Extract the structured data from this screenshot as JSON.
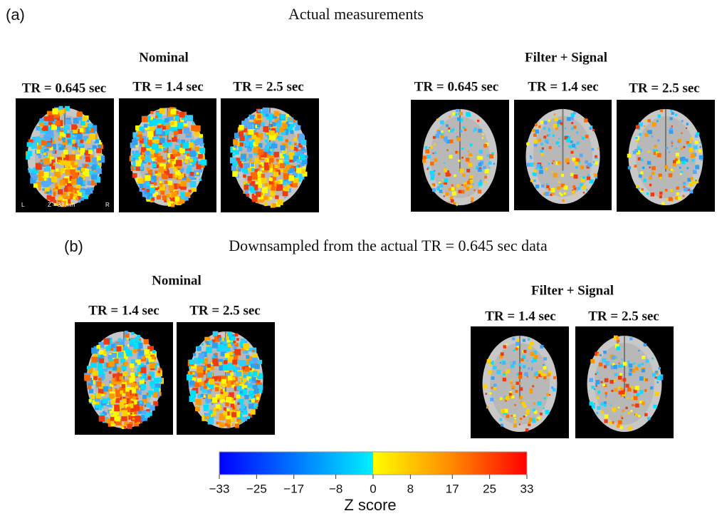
{
  "panel_a": {
    "label": "(a)",
    "title": "Actual measurements",
    "groups": [
      {
        "title": "Nominal",
        "images": [
          "TR = 0.645 sec",
          "TR = 1.4 sec",
          "TR = 2.5 sec"
        ]
      },
      {
        "title": "Filter + Signal",
        "images": [
          "TR = 0.645 sec",
          "TR = 1.4 sec",
          "TR = 2.5 sec"
        ]
      }
    ],
    "annotation": {
      "left": "L",
      "slice": "Z = 33 mm",
      "right": "R"
    }
  },
  "panel_b": {
    "label": "(b)",
    "title": "Downsampled from the actual TR = 0.645 sec data",
    "groups": [
      {
        "title": "Nominal",
        "images": [
          "TR = 1.4 sec",
          "TR = 2.5 sec"
        ]
      },
      {
        "title": "Filter + Signal",
        "images": [
          "TR = 1.4 sec",
          "TR = 2.5 sec"
        ]
      }
    ]
  },
  "colorbar": {
    "label": "Z score",
    "lim": [
      -33,
      33
    ],
    "ticks": [
      {
        "value": -33,
        "label": "−33"
      },
      {
        "value": -25,
        "label": "−25"
      },
      {
        "value": -17,
        "label": "−17"
      },
      {
        "value": -8,
        "label": "−8"
      },
      0,
      8,
      17,
      25,
      33
    ]
  }
}
